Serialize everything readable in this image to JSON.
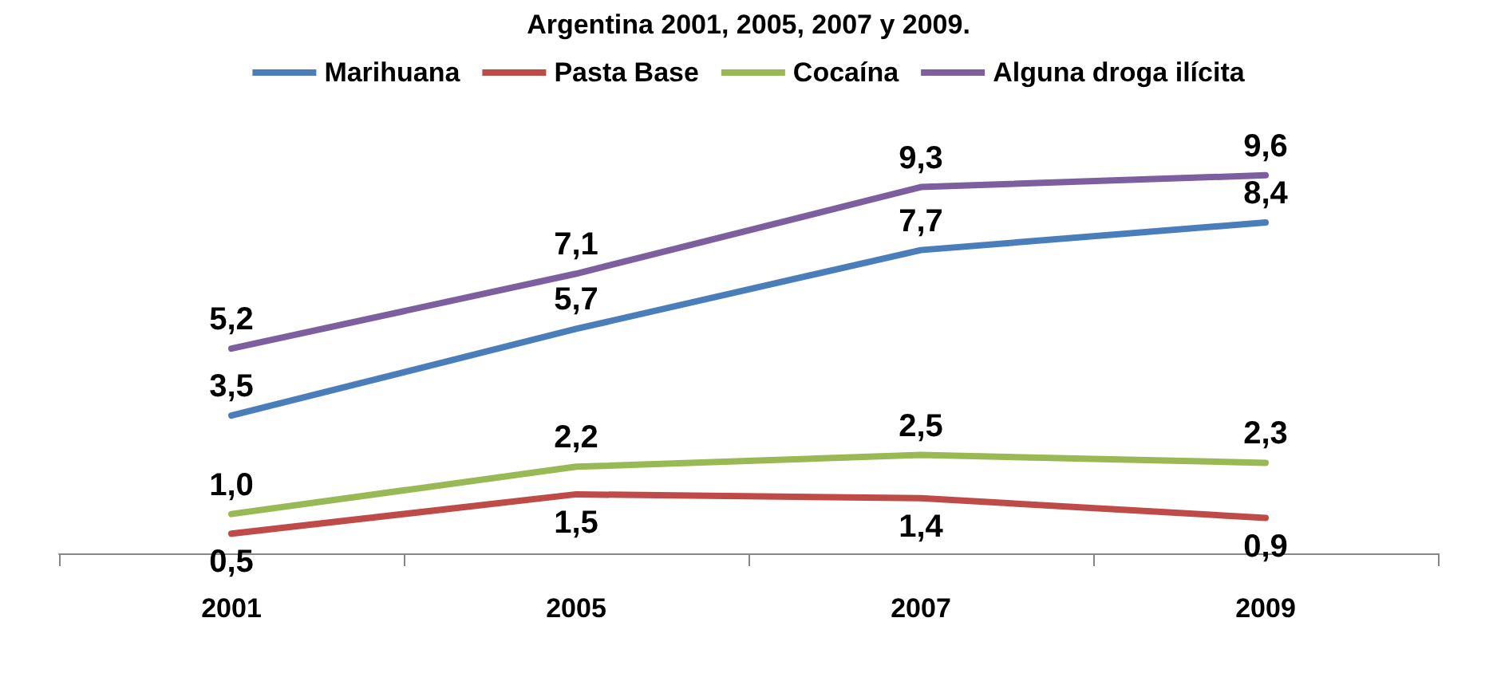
{
  "chart_data": {
    "type": "line",
    "title": "Argentina 2001, 2005, 2007 y 2009.",
    "categories": [
      "2001",
      "2005",
      "2007",
      "2009"
    ],
    "series": [
      {
        "name": "Marihuana",
        "color": "#4a7ebb",
        "values": [
          3.5,
          5.7,
          7.7,
          8.4
        ],
        "value_labels": [
          "3,5",
          "5,7",
          "7,7",
          "8,4"
        ]
      },
      {
        "name": "Pasta Base",
        "color": "#be4b48",
        "values": [
          0.5,
          1.5,
          1.4,
          0.9
        ],
        "value_labels": [
          "0,5",
          "1,5",
          "1,4",
          "0,9"
        ]
      },
      {
        "name": "Cocaína",
        "color": "#98b954",
        "values": [
          1.0,
          2.2,
          2.5,
          2.3
        ],
        "value_labels": [
          "1,0",
          "2,2",
          "2,5",
          "2,3"
        ]
      },
      {
        "name": "Alguna droga ilícita",
        "color": "#7d5fa0",
        "values": [
          5.2,
          7.1,
          9.3,
          9.6
        ],
        "value_labels": [
          "5,2",
          "7,1",
          "9,3",
          "9,6"
        ]
      }
    ],
    "legend": "top",
    "grid": false,
    "marker": "none",
    "line_style": "solid"
  }
}
